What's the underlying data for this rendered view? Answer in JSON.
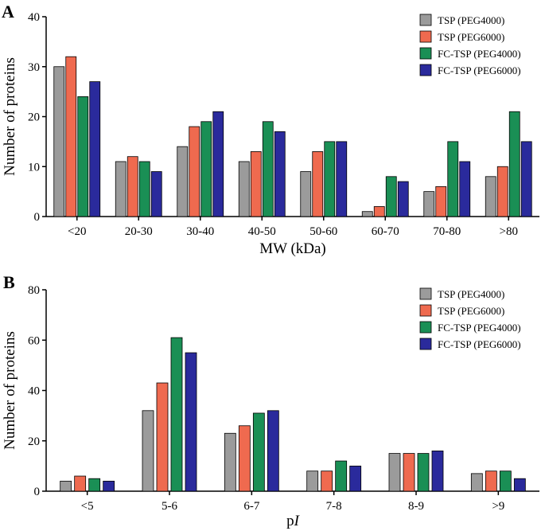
{
  "chart_data": [
    {
      "type": "bar",
      "panel_label": "A",
      "xlabel": "MW (kDa)",
      "xlabel_italic": "",
      "ylabel": "Number of proteins",
      "ylim": [
        0,
        40
      ],
      "yticks": [
        "0",
        "10",
        "20",
        "30",
        "40"
      ],
      "categories": [
        "<20",
        "20-30",
        "30-40",
        "40-50",
        "50-60",
        "60-70",
        "70-80",
        ">80"
      ],
      "series": [
        {
          "name": "TSP (PEG4000)",
          "color": "#9b9b9b",
          "values": [
            30,
            11,
            14,
            11,
            9,
            1,
            5,
            8
          ]
        },
        {
          "name": "TSP (PEG6000)",
          "color": "#ef6a4f",
          "values": [
            32,
            12,
            18,
            13,
            13,
            2,
            6,
            10
          ]
        },
        {
          "name": "FC-TSP (PEG4000)",
          "color": "#1a8f55",
          "values": [
            24,
            11,
            19,
            19,
            15,
            8,
            15,
            21
          ]
        },
        {
          "name": "FC-TSP (PEG6000)",
          "color": "#2a2a9c",
          "values": [
            27,
            9,
            21,
            17,
            15,
            7,
            11,
            15
          ]
        }
      ],
      "legend_position": "top-right"
    },
    {
      "type": "bar",
      "panel_label": "B",
      "xlabel": "p",
      "xlabel_italic": "I",
      "ylabel": "Number of proteins",
      "ylim": [
        0,
        80
      ],
      "yticks": [
        "0",
        "20",
        "40",
        "60",
        "80"
      ],
      "categories": [
        "<5",
        "5-6",
        "6-7",
        "7-8",
        "8-9",
        ">9"
      ],
      "series": [
        {
          "name": "TSP (PEG4000)",
          "color": "#9b9b9b",
          "values": [
            4,
            32,
            23,
            8,
            15,
            7
          ]
        },
        {
          "name": "TSP (PEG6000)",
          "color": "#ef6a4f",
          "values": [
            6,
            43,
            26,
            8,
            15,
            8
          ]
        },
        {
          "name": "FC-TSP (PEG4000)",
          "color": "#1a8f55",
          "values": [
            5,
            61,
            31,
            12,
            15,
            8
          ]
        },
        {
          "name": "FC-TSP (PEG6000)",
          "color": "#2a2a9c",
          "values": [
            4,
            55,
            32,
            10,
            16,
            5
          ]
        }
      ],
      "legend_position": "top-right"
    }
  ]
}
